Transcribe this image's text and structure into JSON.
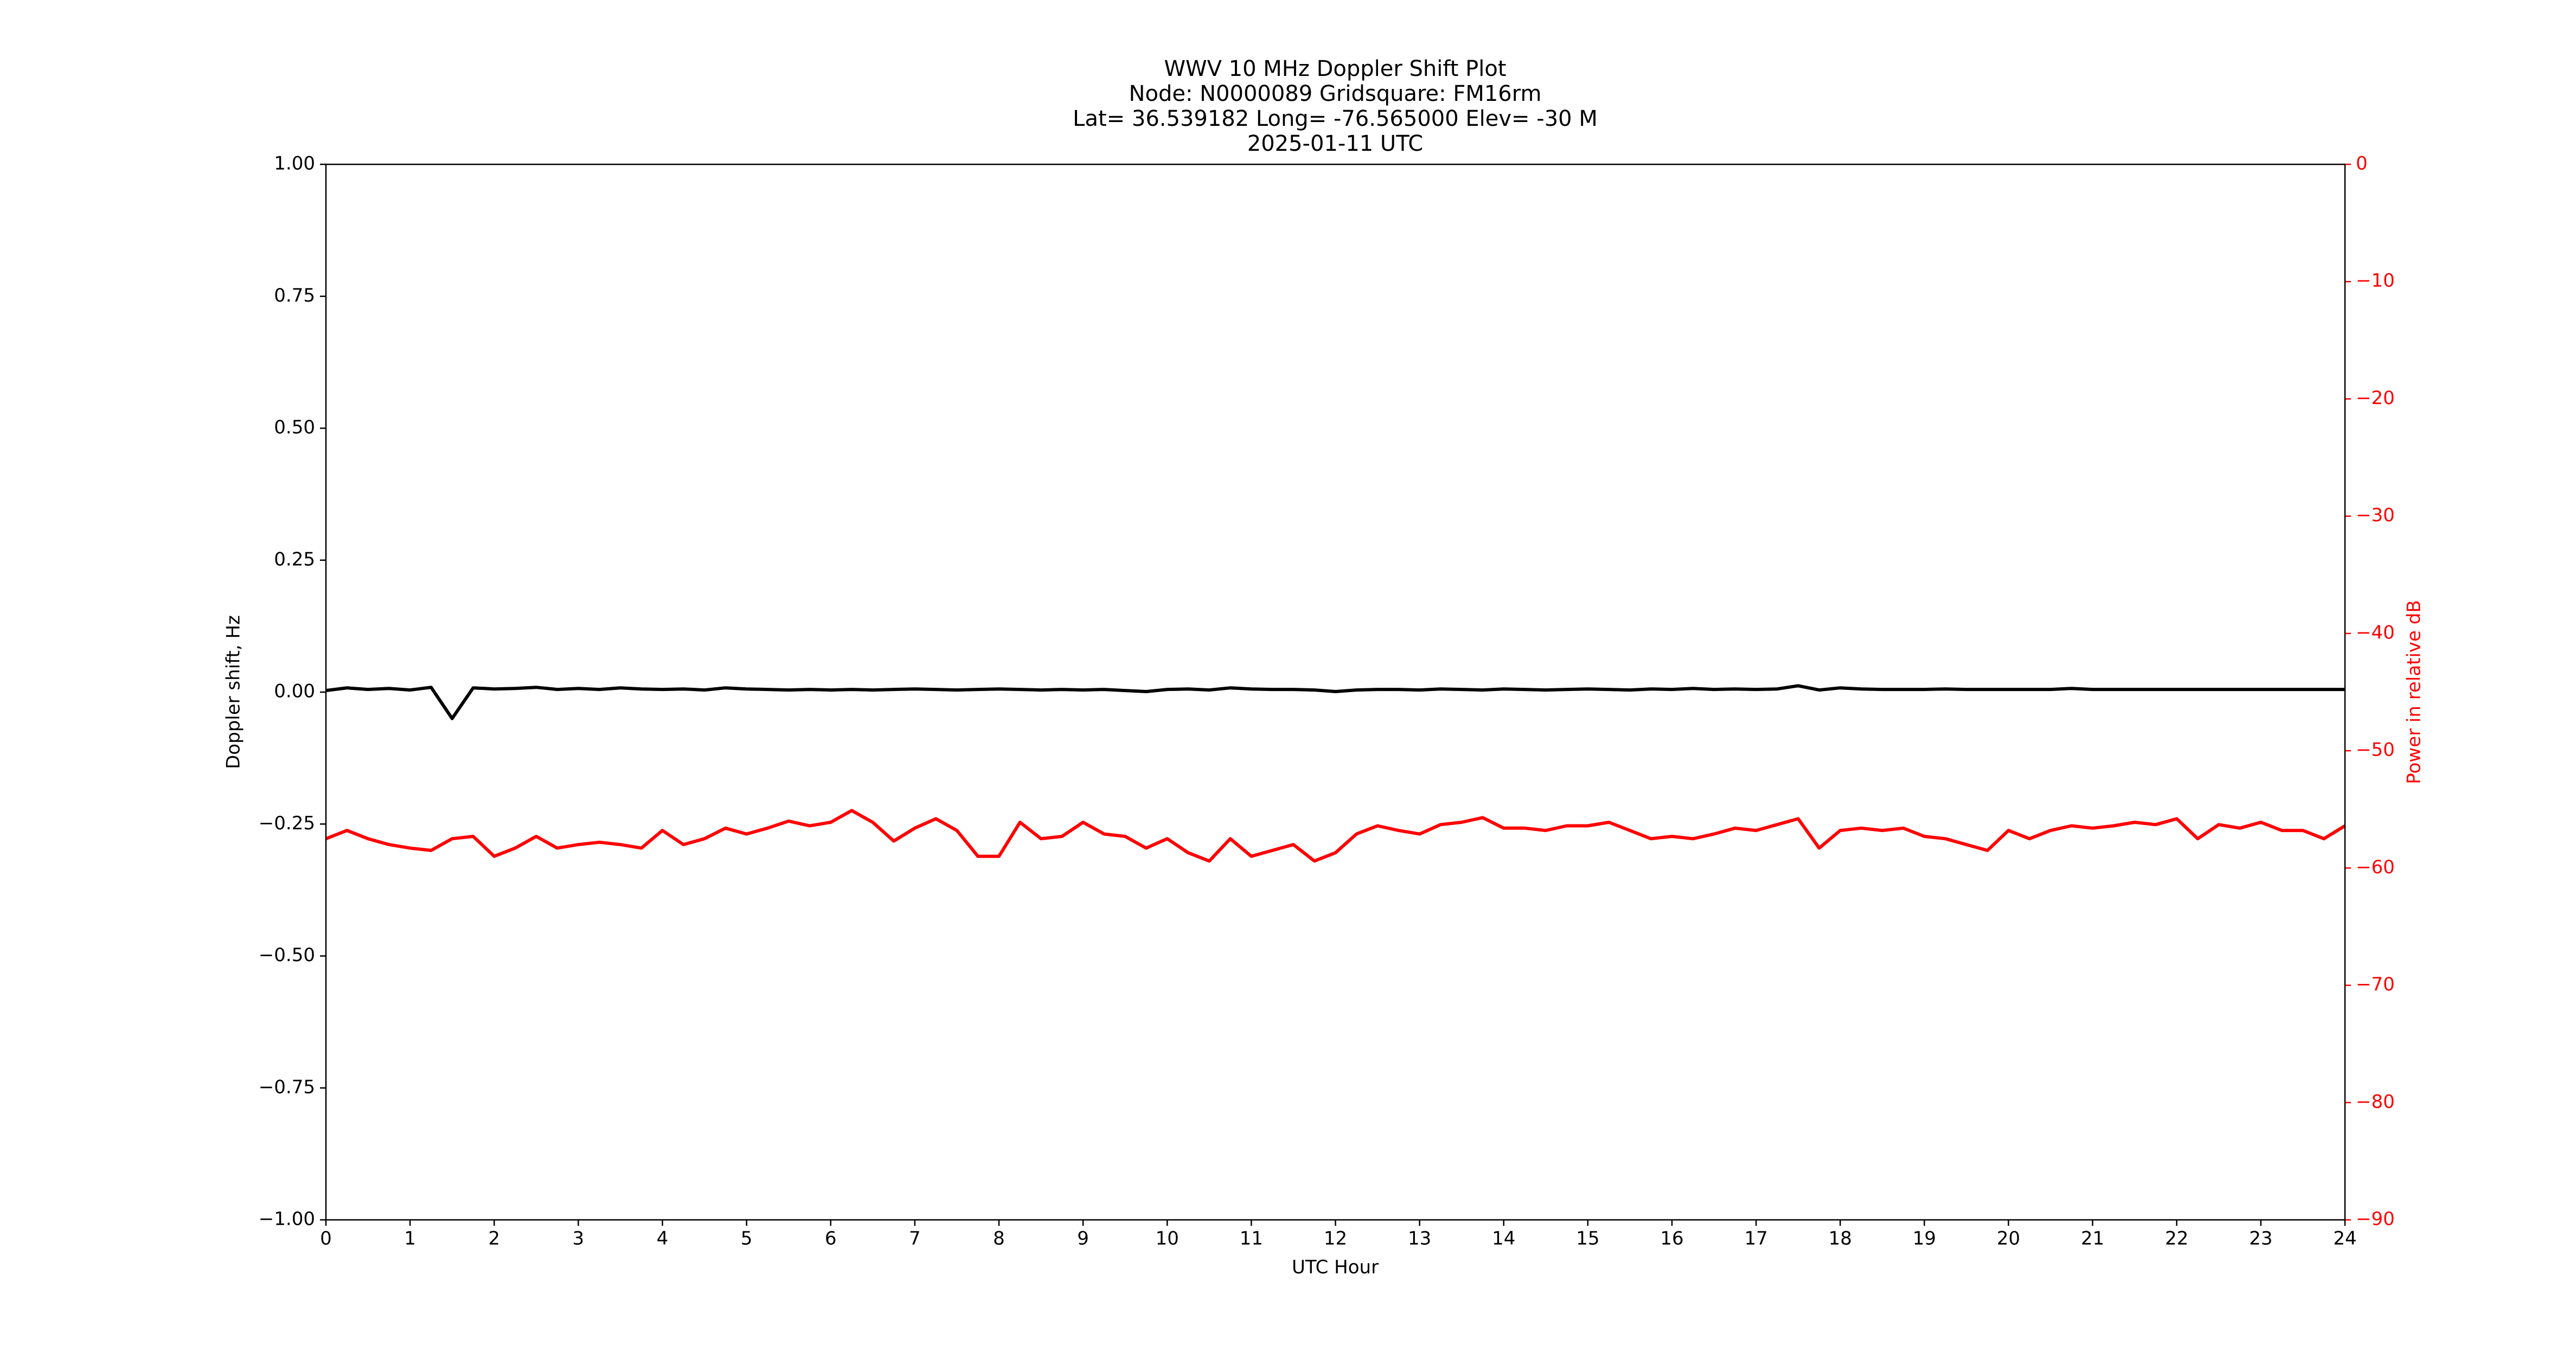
{
  "chart_data": {
    "type": "line",
    "title": [
      "WWV 10 MHz Doppler Shift Plot",
      "Node:  N0000089     Gridsquare:  FM16rm",
      "Lat= 36.539182    Long= -76.565000    Elev= -30 M",
      "2025-01-11  UTC"
    ],
    "x_label": "UTC Hour",
    "y_label": "Doppler shift, Hz",
    "y2_label": "Power in relative dB",
    "xlim": [
      0,
      24
    ],
    "xticks": [
      0,
      1,
      2,
      3,
      4,
      5,
      6,
      7,
      8,
      9,
      10,
      11,
      12,
      13,
      14,
      15,
      16,
      17,
      18,
      19,
      20,
      21,
      22,
      23,
      24
    ],
    "ylim": [
      -1,
      1
    ],
    "yticks": [
      {
        "value": -1,
        "label": "−1.00"
      },
      {
        "value": -0.75,
        "label": "−0.75"
      },
      {
        "value": -0.5,
        "label": "−0.50"
      },
      {
        "value": -0.25,
        "label": "−0.25"
      },
      {
        "value": 0,
        "label": "0.00"
      },
      {
        "value": 0.25,
        "label": "0.25"
      },
      {
        "value": 0.5,
        "label": "0.50"
      },
      {
        "value": 0.75,
        "label": "0.75"
      },
      {
        "value": 1,
        "label": "1.00"
      }
    ],
    "y2lim": [
      -90,
      0
    ],
    "y2ticks": [
      {
        "value": -90,
        "label": "−90"
      },
      {
        "value": -80,
        "label": "−80"
      },
      {
        "value": -70,
        "label": "−70"
      },
      {
        "value": -60,
        "label": "−60"
      },
      {
        "value": -50,
        "label": "−50"
      },
      {
        "value": -40,
        "label": "−40"
      },
      {
        "value": -30,
        "label": "−30"
      },
      {
        "value": -20,
        "label": "−20"
      },
      {
        "value": -10,
        "label": "−10"
      },
      0
    ],
    "x": [
      0,
      0.25,
      0.5,
      0.75,
      1,
      1.25,
      1.5,
      1.75,
      2,
      2.25,
      2.5,
      2.75,
      3,
      3.25,
      3.5,
      3.75,
      4,
      4.25,
      4.5,
      4.75,
      5,
      5.25,
      5.5,
      5.75,
      6,
      6.25,
      6.5,
      6.75,
      7,
      7.25,
      7.5,
      7.75,
      8,
      8.25,
      8.5,
      8.75,
      9,
      9.25,
      9.5,
      9.75,
      10,
      10.25,
      10.5,
      10.75,
      11,
      11.25,
      11.5,
      11.75,
      12,
      12.25,
      12.5,
      12.75,
      13,
      13.25,
      13.5,
      13.75,
      14,
      14.25,
      14.5,
      14.75,
      15,
      15.25,
      15.5,
      15.75,
      16,
      16.25,
      16.5,
      16.75,
      17,
      17.25,
      17.5,
      17.75,
      18,
      18.25,
      18.5,
      18.75,
      19,
      19.25,
      19.5,
      19.75,
      20,
      20.25,
      20.5,
      20.75,
      21,
      21.25,
      21.5,
      21.75,
      22,
      22.25,
      22.5,
      22.75,
      23,
      23.25,
      23.5,
      23.75,
      24
    ],
    "series": [
      {
        "name": "Doppler shift",
        "color": "#000000",
        "values": [
          0.003,
          0.008,
          0.005,
          0.007,
          0.004,
          0.009,
          -0.05,
          0.008,
          0.006,
          0.007,
          0.009,
          0.005,
          0.007,
          0.005,
          0.008,
          0.006,
          0.005,
          0.006,
          0.004,
          0.008,
          0.006,
          0.005,
          0.004,
          0.005,
          0.004,
          0.005,
          0.004,
          0.005,
          0.006,
          0.005,
          0.004,
          0.005,
          0.006,
          0.005,
          0.004,
          0.005,
          0.004,
          0.005,
          0.003,
          0.001,
          0.005,
          0.006,
          0.004,
          0.008,
          0.006,
          0.005,
          0.005,
          0.004,
          0.001,
          0.004,
          0.005,
          0.005,
          0.004,
          0.006,
          0.005,
          0.004,
          0.006,
          0.005,
          0.004,
          0.005,
          0.006,
          0.005,
          0.004,
          0.006,
          0.005,
          0.007,
          0.005,
          0.006,
          0.005,
          0.006,
          0.012,
          0.004,
          0.008,
          0.006,
          0.005,
          0.005,
          0.005,
          0.006,
          0.005,
          0.005,
          0.005,
          0.005,
          0.005,
          0.007,
          0.005,
          0.005,
          0.005,
          0.005,
          0.005,
          0.005,
          0.005,
          0.005,
          0.005,
          0.005,
          0.005,
          0.005,
          0.005
        ]
      },
      {
        "name": "Power",
        "color": "#ff0000",
        "axis": "y2",
        "values": [
          -57.5,
          -56.8,
          -57.5,
          -58.0,
          -58.3,
          -58.5,
          -57.5,
          -57.3,
          -59.0,
          -58.3,
          -57.3,
          -58.3,
          -58.0,
          -57.8,
          -58.0,
          -58.3,
          -56.8,
          -58.0,
          -57.5,
          -56.6,
          -57.1,
          -56.6,
          -56.0,
          -56.4,
          -56.1,
          -55.1,
          -56.1,
          -57.7,
          -56.6,
          -55.8,
          -56.8,
          -59.0,
          -59.0,
          -56.1,
          -57.5,
          -57.3,
          -56.1,
          -57.1,
          -57.3,
          -58.3,
          -57.5,
          -58.7,
          -59.4,
          -57.5,
          -59.0,
          -58.5,
          -58.0,
          -59.4,
          -58.7,
          -57.1,
          -56.4,
          -56.8,
          -57.1,
          -56.3,
          -56.1,
          -55.7,
          -56.6,
          -56.6,
          -56.8,
          -56.4,
          -56.4,
          -56.1,
          -56.8,
          -57.5,
          -57.3,
          -57.5,
          -57.1,
          -56.6,
          -56.8,
          -56.3,
          -55.8,
          -58.3,
          -56.8,
          -56.6,
          -56.8,
          -56.6,
          -57.3,
          -57.5,
          -58.0,
          -58.5,
          -56.8,
          -57.5,
          -56.8,
          -56.4,
          -56.6,
          -56.4,
          -56.1,
          -56.3,
          -55.8,
          -57.5,
          -56.3,
          -56.6,
          -56.1,
          -56.8,
          -56.8,
          -57.5,
          -56.4
        ]
      }
    ]
  }
}
